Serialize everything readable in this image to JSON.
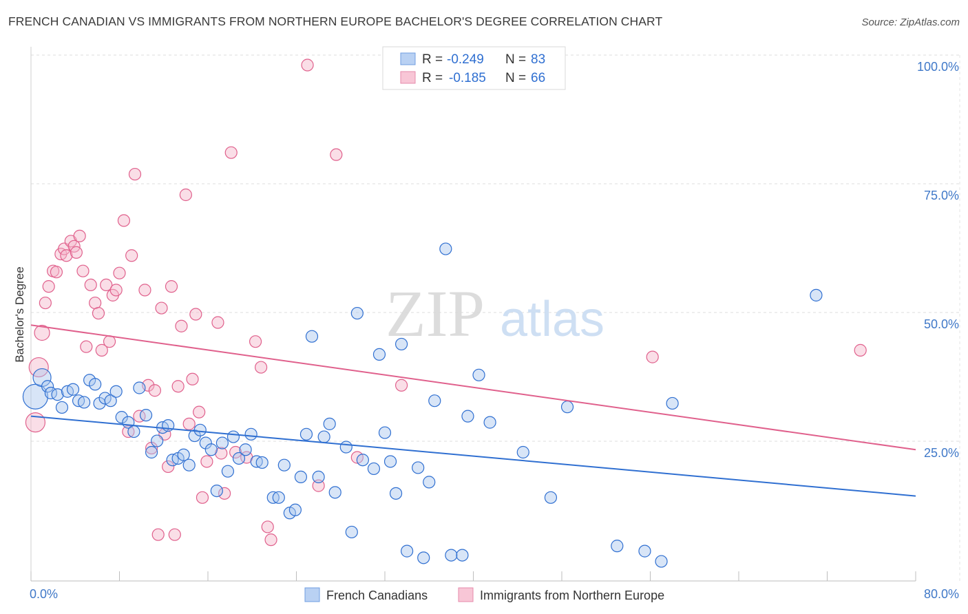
{
  "title": "FRENCH CANADIAN VS IMMIGRANTS FROM NORTHERN EUROPE BACHELOR'S DEGREE CORRELATION CHART",
  "source": "Source: ZipAtlas.com",
  "watermark": {
    "zip": "ZIP",
    "atlas": "atlas"
  },
  "colors": {
    "blue": "#2f6fd1",
    "pink": "#e0608c",
    "blue_fill": "#a9c6ee",
    "pink_fill": "#f4b6c9",
    "tick_text": "#3f78c8"
  },
  "legend": {
    "r_label": "R =",
    "n_label": "N =",
    "rows": [
      {
        "r": "-0.249",
        "n": "83"
      },
      {
        "r": "-0.185",
        "n": "66"
      }
    ]
  },
  "bottom_legend": [
    "French Canadians",
    "Immigrants from Northern Europe"
  ],
  "chart_data": {
    "type": "scatter",
    "xlabel": "",
    "ylabel": "Bachelor's Degree",
    "xlim": [
      0,
      80
    ],
    "ylim": [
      0,
      100
    ],
    "x_tick_labels": [
      "0.0%",
      "80.0%"
    ],
    "y_tick_labels": [
      "25.0%",
      "50.0%",
      "75.0%",
      "100.0%"
    ],
    "y_ticks": [
      25,
      50,
      75,
      100
    ],
    "grid": true,
    "legend_position": "top-center",
    "series": [
      {
        "name": "French Canadians",
        "color": "#2f6fd1",
        "trend": {
          "x": [
            0,
            80
          ],
          "y": [
            32.0,
            16.5
          ]
        },
        "points": [
          [
            0.4,
            35.8,
            18
          ],
          [
            1.0,
            39.5,
            13
          ],
          [
            1.5,
            37.8,
            10
          ],
          [
            1.8,
            36.5,
            10
          ],
          [
            2.4,
            36.2,
            10
          ],
          [
            2.8,
            33.7,
            10
          ],
          [
            3.3,
            36.8,
            10
          ],
          [
            3.8,
            37.2,
            10
          ],
          [
            4.3,
            35.0,
            10
          ],
          [
            4.8,
            34.7,
            10
          ],
          [
            5.3,
            39.0,
            10
          ],
          [
            5.8,
            38.2,
            10
          ],
          [
            6.2,
            34.5,
            10
          ],
          [
            6.7,
            35.5,
            10
          ],
          [
            7.2,
            35.0,
            10
          ],
          [
            7.7,
            36.8,
            10
          ],
          [
            8.2,
            31.8,
            10
          ],
          [
            8.8,
            30.8,
            10
          ],
          [
            9.3,
            29.0,
            10
          ],
          [
            9.8,
            37.5,
            10
          ],
          [
            10.4,
            32.2,
            10
          ],
          [
            10.9,
            25.0,
            10
          ],
          [
            11.4,
            27.2,
            10
          ],
          [
            11.9,
            29.8,
            10
          ],
          [
            12.4,
            30.2,
            10
          ],
          [
            12.8,
            23.5,
            10
          ],
          [
            13.3,
            23.8,
            10
          ],
          [
            13.8,
            24.5,
            10
          ],
          [
            14.3,
            22.5,
            10
          ],
          [
            14.8,
            28.2,
            10
          ],
          [
            15.3,
            29.3,
            10
          ],
          [
            15.8,
            26.8,
            10
          ],
          [
            16.3,
            25.5,
            10
          ],
          [
            16.8,
            17.5,
            10
          ],
          [
            17.3,
            26.8,
            10
          ],
          [
            17.8,
            21.3,
            10
          ],
          [
            18.3,
            28.0,
            10
          ],
          [
            18.8,
            23.8,
            10
          ],
          [
            19.4,
            25.5,
            10
          ],
          [
            19.9,
            28.5,
            10
          ],
          [
            20.4,
            23.2,
            10
          ],
          [
            20.9,
            23.0,
            10
          ],
          [
            21.9,
            16.2,
            10
          ],
          [
            22.4,
            16.2,
            10
          ],
          [
            22.9,
            22.5,
            10
          ],
          [
            23.4,
            13.2,
            10
          ],
          [
            23.9,
            13.8,
            10
          ],
          [
            24.4,
            20.2,
            10
          ],
          [
            24.9,
            28.5,
            10
          ],
          [
            25.4,
            47.5,
            10
          ],
          [
            26.0,
            20.2,
            10
          ],
          [
            26.5,
            28.0,
            10
          ],
          [
            27.0,
            30.5,
            10
          ],
          [
            27.5,
            17.2,
            10
          ],
          [
            28.5,
            26.0,
            10
          ],
          [
            29.0,
            9.5,
            10
          ],
          [
            29.5,
            52.0,
            10
          ],
          [
            30.0,
            23.5,
            10
          ],
          [
            31.0,
            21.8,
            10
          ],
          [
            31.5,
            44.0,
            10
          ],
          [
            32.0,
            28.8,
            10
          ],
          [
            32.5,
            23.2,
            10
          ],
          [
            33.0,
            17.0,
            10
          ],
          [
            33.5,
            46.0,
            10
          ],
          [
            34.0,
            5.8,
            10
          ],
          [
            35.0,
            22.0,
            10
          ],
          [
            35.5,
            4.5,
            10
          ],
          [
            36.0,
            19.2,
            10
          ],
          [
            36.5,
            35.0,
            10
          ],
          [
            37.5,
            64.5,
            10
          ],
          [
            38.0,
            5.0,
            10
          ],
          [
            39.0,
            5.0,
            10
          ],
          [
            39.5,
            32.0,
            10
          ],
          [
            40.5,
            40.0,
            10
          ],
          [
            41.5,
            30.8,
            10
          ],
          [
            44.5,
            25.0,
            10
          ],
          [
            47.0,
            16.2,
            10
          ],
          [
            48.5,
            33.8,
            10
          ],
          [
            53.0,
            6.8,
            10
          ],
          [
            55.5,
            5.8,
            10
          ],
          [
            57.0,
            3.8,
            10
          ],
          [
            58.0,
            34.5,
            10
          ],
          [
            71.0,
            55.5,
            10
          ]
        ]
      },
      {
        "name": "Immigrants from Northern Europe",
        "color": "#e0608c",
        "trend": {
          "x": [
            0,
            80
          ],
          "y": [
            49.7,
            25.5
          ]
        },
        "points": [
          [
            0.4,
            30.8,
            14
          ],
          [
            0.7,
            41.5,
            14
          ],
          [
            1.0,
            48.2,
            11
          ],
          [
            1.3,
            54.0,
            10
          ],
          [
            1.6,
            57.2,
            10
          ],
          [
            2.0,
            60.2,
            10
          ],
          [
            2.3,
            60.0,
            10
          ],
          [
            2.7,
            63.5,
            10
          ],
          [
            3.0,
            64.5,
            10
          ],
          [
            3.2,
            63.2,
            10
          ],
          [
            3.6,
            66.0,
            10
          ],
          [
            3.9,
            65.0,
            10
          ],
          [
            4.1,
            63.8,
            10
          ],
          [
            4.4,
            67.0,
            10
          ],
          [
            4.7,
            60.2,
            10
          ],
          [
            5.0,
            45.5,
            10
          ],
          [
            5.4,
            57.5,
            10
          ],
          [
            5.8,
            54.0,
            10
          ],
          [
            6.1,
            52.0,
            10
          ],
          [
            6.4,
            44.8,
            10
          ],
          [
            6.8,
            57.5,
            10
          ],
          [
            7.1,
            46.5,
            10
          ],
          [
            7.4,
            55.5,
            10
          ],
          [
            7.7,
            56.5,
            10
          ],
          [
            8.0,
            59.8,
            10
          ],
          [
            8.4,
            70.0,
            10
          ],
          [
            8.8,
            29.0,
            10
          ],
          [
            9.1,
            63.2,
            10
          ],
          [
            9.4,
            79.0,
            10
          ],
          [
            9.8,
            32.0,
            10
          ],
          [
            10.3,
            56.5,
            10
          ],
          [
            10.6,
            38.0,
            10
          ],
          [
            10.9,
            25.8,
            10
          ],
          [
            11.2,
            37.0,
            10
          ],
          [
            11.5,
            9.0,
            10
          ],
          [
            11.8,
            53.0,
            10
          ],
          [
            12.1,
            28.5,
            10
          ],
          [
            12.4,
            22.2,
            10
          ],
          [
            12.7,
            57.2,
            10
          ],
          [
            13.0,
            9.0,
            10
          ],
          [
            13.3,
            37.8,
            10
          ],
          [
            13.6,
            49.5,
            10
          ],
          [
            14.0,
            75.0,
            10
          ],
          [
            14.3,
            30.5,
            10
          ],
          [
            14.6,
            39.2,
            10
          ],
          [
            14.9,
            51.8,
            10
          ],
          [
            15.2,
            32.8,
            10
          ],
          [
            15.5,
            16.2,
            10
          ],
          [
            15.9,
            23.2,
            10
          ],
          [
            16.9,
            50.2,
            10
          ],
          [
            17.2,
            24.8,
            10
          ],
          [
            17.5,
            17.0,
            10
          ],
          [
            18.1,
            83.2,
            10
          ],
          [
            18.5,
            25.0,
            10
          ],
          [
            19.5,
            24.0,
            10
          ],
          [
            20.3,
            46.5,
            10
          ],
          [
            20.8,
            41.5,
            10
          ],
          [
            21.4,
            10.5,
            10
          ],
          [
            21.7,
            8.0,
            10
          ],
          [
            25.0,
            100.2,
            10
          ],
          [
            26.0,
            18.5,
            10
          ],
          [
            27.6,
            82.8,
            10
          ],
          [
            29.5,
            24.0,
            10
          ],
          [
            33.5,
            38.0,
            10
          ],
          [
            56.2,
            43.5,
            10
          ],
          [
            75.0,
            44.8,
            10
          ]
        ]
      }
    ]
  }
}
